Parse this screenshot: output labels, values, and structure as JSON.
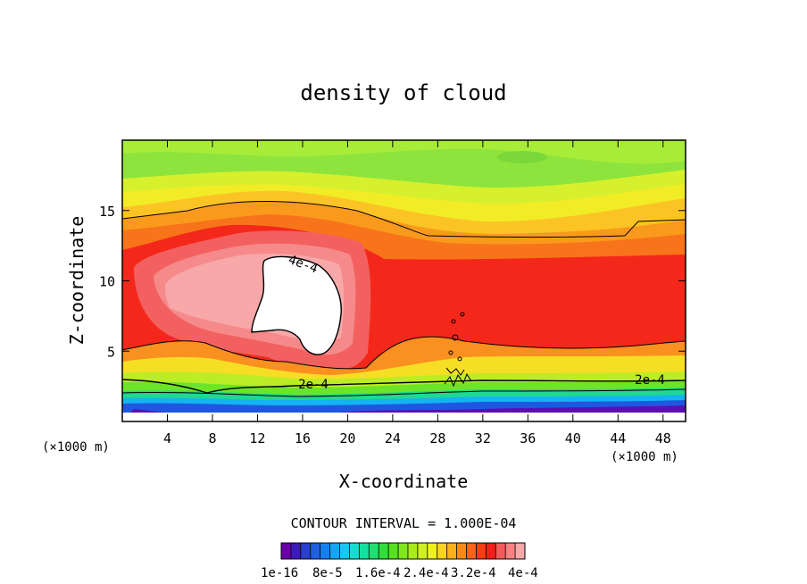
{
  "chart_data": {
    "type": "heatmap",
    "title": "density of cloud",
    "xlabel": "X-coordinate",
    "ylabel": "Z-coordinate",
    "x_unit_left": "(×1000 m)",
    "x_unit_right": "(×1000 m)",
    "xlim": [
      0,
      50
    ],
    "ylim": [
      0,
      20
    ],
    "x_ticks": [
      4,
      8,
      12,
      16,
      20,
      24,
      28,
      32,
      36,
      40,
      44,
      48
    ],
    "x_tick_labels": [
      "4",
      "8",
      "12",
      "16",
      "20",
      "24",
      "28",
      "32",
      "36",
      "40",
      "44",
      "48"
    ],
    "y_ticks": [
      5,
      10,
      15
    ],
    "y_tick_labels": [
      "5",
      "10",
      "15"
    ],
    "contour_interval_text": "CONTOUR INTERVAL = 1.000E-04",
    "contour_labels": [
      {
        "text": "4e-4",
        "x": 16,
        "y": 11
      },
      {
        "text": "2e-4",
        "x": 17,
        "y": 2.8
      },
      {
        "text": "2e-4",
        "x": 46,
        "y": 3.1
      }
    ],
    "colorbar": {
      "colors": [
        "#6a00a8",
        "#3d1bb8",
        "#2840c8",
        "#1f5fe0",
        "#1780f0",
        "#10a8f5",
        "#14c8f0",
        "#16dcd0",
        "#14e0a0",
        "#1ee070",
        "#30dd3a",
        "#55e020",
        "#80e81a",
        "#a8ec1c",
        "#d0f01e",
        "#eef022",
        "#fbd41e",
        "#fbb01a",
        "#fa8a16",
        "#fa6414",
        "#f83c14",
        "#f41e1a",
        "#f45a5a",
        "#f68282",
        "#f7a8a8"
      ],
      "labels": [
        "1e-16",
        "8e-5",
        "1.6e-4",
        "2.4e-4",
        "3.2e-4",
        "4e-4"
      ]
    }
  }
}
